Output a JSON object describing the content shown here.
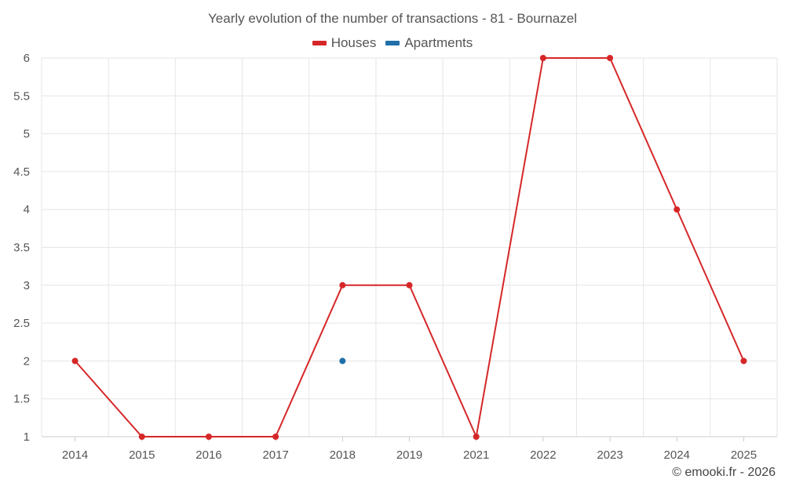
{
  "chart_data": {
    "type": "line",
    "title": "Yearly evolution of the number of transactions - 81 - Bournazel",
    "categories": [
      "2014",
      "2015",
      "2016",
      "2017",
      "2018",
      "2019",
      "2021",
      "2022",
      "2023",
      "2024",
      "2025"
    ],
    "series": [
      {
        "name": "Houses",
        "color": "#d62728",
        "values": [
          2,
          1,
          1,
          1,
          3,
          3,
          1,
          6,
          6,
          4,
          2
        ]
      },
      {
        "name": "Apartments",
        "color": "#1f6fa8",
        "values": [
          null,
          null,
          null,
          null,
          2,
          null,
          null,
          null,
          null,
          null,
          null
        ]
      }
    ],
    "ylim": [
      1,
      6
    ],
    "yticks": [
      "1",
      "1.5",
      "2",
      "2.5",
      "3",
      "3.5",
      "4",
      "4.5",
      "5",
      "5.5",
      "6"
    ],
    "xlabel": "",
    "ylabel": "",
    "grid": true,
    "legend_position": "top-center"
  },
  "credit": "© emooki.fr - 2026"
}
